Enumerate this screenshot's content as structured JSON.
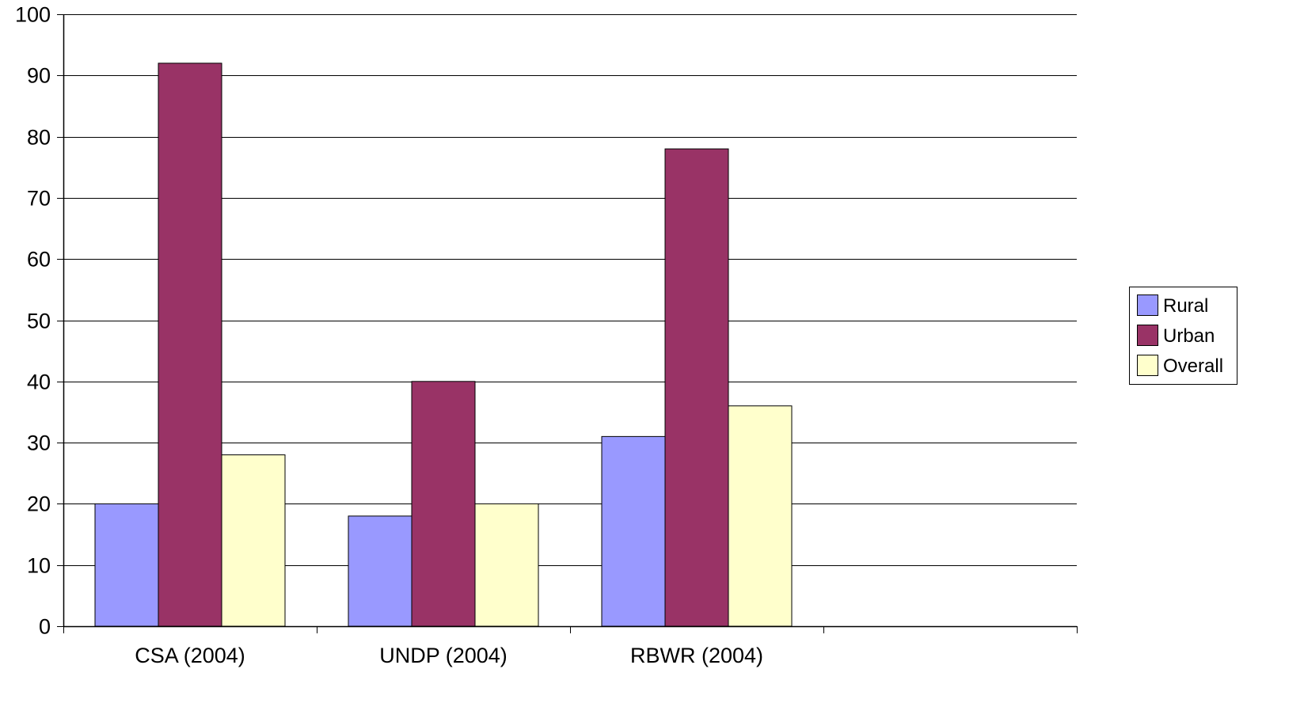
{
  "chart_data": {
    "type": "bar",
    "categories": [
      "CSA (2004)",
      "UNDP (2004)",
      "RBWR (2004)",
      ""
    ],
    "series": [
      {
        "name": "Rural",
        "color": "#9999FF",
        "values": [
          20,
          18,
          31,
          null
        ]
      },
      {
        "name": "Urban",
        "color": "#993366",
        "values": [
          92,
          40,
          78,
          null
        ]
      },
      {
        "name": "Overall",
        "color": "#FFFFCC",
        "values": [
          28,
          20,
          36,
          null
        ]
      }
    ],
    "ylim": [
      0,
      100
    ],
    "yticks": [
      0,
      10,
      20,
      30,
      40,
      50,
      60,
      70,
      80,
      90,
      100
    ],
    "grid": true,
    "legend_position": "right",
    "title": "",
    "xlabel": "",
    "ylabel": ""
  }
}
